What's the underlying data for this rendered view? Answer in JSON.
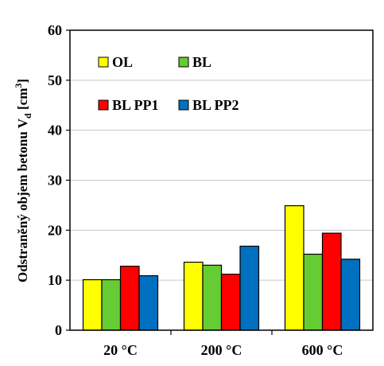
{
  "chart_data": {
    "type": "bar",
    "ylabel_main": "Odstraněný  objem betonu V",
    "ylabel_sub": "d",
    "ylabel_unit": " [cm",
    "ylabel_sup": "3",
    "ylabel_end": "]",
    "ylim": [
      0,
      60
    ],
    "yticks": [
      0,
      10,
      20,
      30,
      40,
      50,
      60
    ],
    "grid": true,
    "legend_position": "top-left",
    "categories": [
      "20 °C",
      "200 °C",
      "600 °C"
    ],
    "series": [
      {
        "name": "OL",
        "color": "#ffff00",
        "values": [
          10.1,
          13.6,
          24.9
        ]
      },
      {
        "name": "BL",
        "color": "#66cc33",
        "values": [
          10.1,
          13.0,
          15.2
        ]
      },
      {
        "name": "BL PP1",
        "color": "#ff0000",
        "values": [
          12.8,
          11.2,
          19.4
        ]
      },
      {
        "name": "BL PP2",
        "color": "#0070c0",
        "values": [
          10.9,
          16.8,
          14.2
        ]
      }
    ]
  }
}
